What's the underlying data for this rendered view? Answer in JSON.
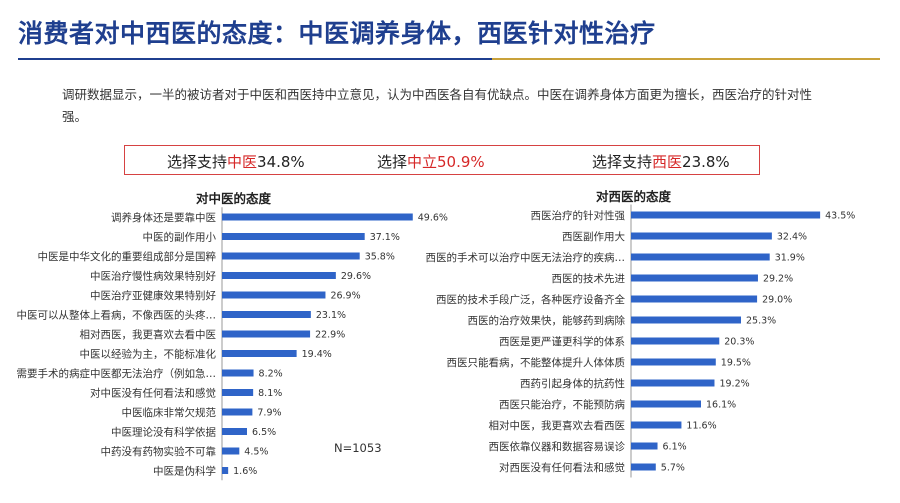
{
  "title": "消费者对中西医的态度：中医调养身体，西医针对性治疗",
  "intro": "调研数据显示，一半的被访者对于中医和西医持中立意见，认为中西医各自有优缺点。中医在调养身体方面更为擅长，西医治疗的针对性强。",
  "summary": [
    {
      "prefix": "选择支持",
      "highlight": "中医",
      "value": "34.8%"
    },
    {
      "prefix": "选择",
      "highlight": "中立50.9%",
      "value": ""
    },
    {
      "prefix": "选择支持",
      "highlight": "西医",
      "value": "23.8%"
    }
  ],
  "sample_size": "N=1053",
  "colors": {
    "bar": "#2f64c8",
    "title": "#1f3f8f",
    "highlight": "#d62828",
    "box_border": "#d64242"
  },
  "chart_data": [
    {
      "type": "bar",
      "orientation": "horizontal",
      "title": "对中医的态度",
      "unit": "%",
      "categories": [
        "调养身体还是要靠中医",
        "中医的副作用小",
        "中医是中华文化的重要组成部分是国粹",
        "中医治疗慢性病效果特别好",
        "中医治疗亚健康效果特别好",
        "中医可以从整体上看病，不像西医的头疼…",
        "相对西医，我更喜欢去看中医",
        "中医以经验为主，不能标准化",
        "需要手术的病症中医都无法治疗（例如急…",
        "对中医没有任何看法和感觉",
        "中医临床非常欠规范",
        "中医理论没有科学依据",
        "中药没有药物实验不可靠",
        "中医是伪科学"
      ],
      "values": [
        49.6,
        37.1,
        35.8,
        29.6,
        26.9,
        23.1,
        22.9,
        19.4,
        8.2,
        8.1,
        7.9,
        6.5,
        4.5,
        1.6
      ],
      "labels": [
        "49.6%",
        "37.1%",
        "35.8%",
        "29.6%",
        "26.9%",
        "23.1%",
        "22.9%",
        "19.4%",
        "8.2%",
        "8.1%",
        "7.9%",
        "6.5%",
        "4.5%",
        "1.6%"
      ],
      "xlim": [
        0,
        52
      ]
    },
    {
      "type": "bar",
      "orientation": "horizontal",
      "title": "对西医的态度",
      "unit": "%",
      "categories": [
        "西医治疗的针对性强",
        "西医副作用大",
        "西医的手术可以治疗中医无法治疗的疾病…",
        "西医的技术先进",
        "西医的技术手段广泛，各种医疗设备齐全",
        "西医的治疗效果快，能够药到病除",
        "西医是更严谨更科学的体系",
        "西医只能看病，不能整体提升人体体质",
        "西药引起身体的抗药性",
        "西医只能治疗，不能预防病",
        "相对中医，我更喜欢去看西医",
        "西医依靠仪器和数据容易误诊",
        "对西医没有任何看法和感觉"
      ],
      "values": [
        43.5,
        32.4,
        31.9,
        29.2,
        29.0,
        25.3,
        20.3,
        19.5,
        19.2,
        16.1,
        11.6,
        6.1,
        5.7
      ],
      "labels": [
        "43.5%",
        "32.4%",
        "31.9%",
        "29.2%",
        "29.0%",
        "25.3%",
        "20.3%",
        "19.5%",
        "19.2%",
        "16.1%",
        "11.6%",
        "6.1%",
        "5.7%"
      ],
      "xlim": [
        0,
        46
      ]
    }
  ]
}
